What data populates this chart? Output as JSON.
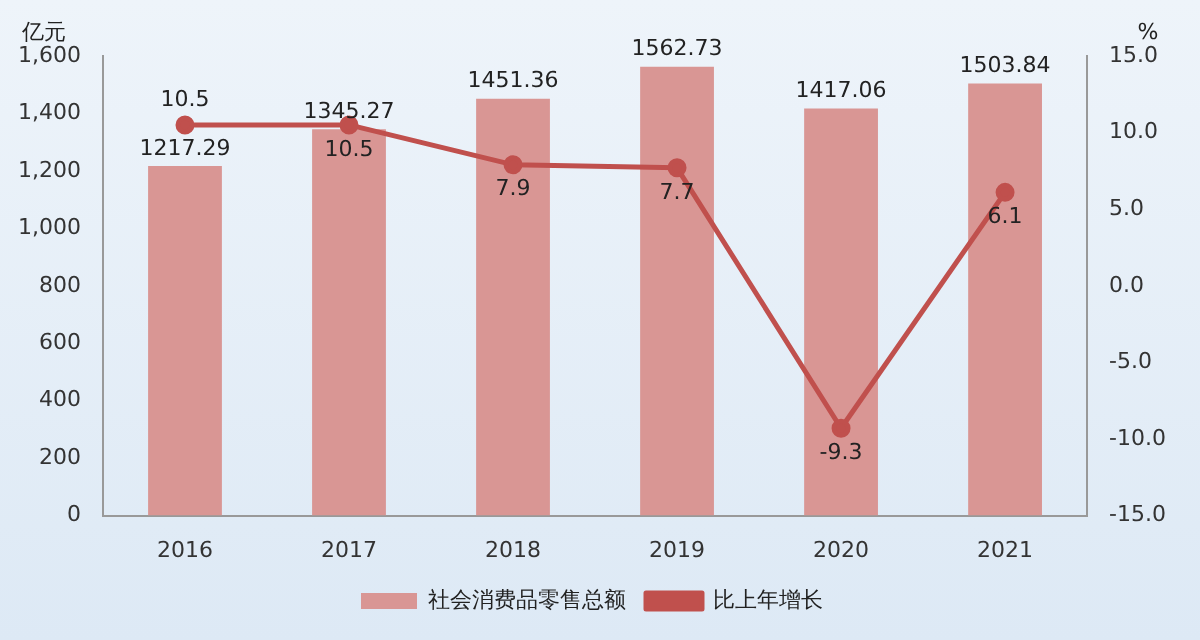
{
  "chart_data": {
    "type": "bar",
    "ylabel": "亿元",
    "y2label": "%",
    "categories": [
      "2016",
      "2017",
      "2018",
      "2019",
      "2020",
      "2021"
    ],
    "series": [
      {
        "name": "社会消费品零售总额",
        "color": "#d99694",
        "values": [
          1217.29,
          1345.27,
          1451.36,
          1562.73,
          1417.06,
          1503.84
        ]
      },
      {
        "name": "比上年增长",
        "type": "line",
        "axis": "y2",
        "color": "#c0504d",
        "values": [
          10.5,
          10.5,
          7.9,
          7.7,
          -9.3,
          6.1
        ]
      }
    ],
    "ylim": [
      0,
      1600
    ],
    "yticks": [
      0,
      200,
      400,
      600,
      800,
      {
        "value": 1000,
        "label": "1,000"
      },
      {
        "value": 1200,
        "label": "1,200"
      },
      {
        "value": 1400,
        "label": "1,400"
      },
      {
        "value": 1600,
        "label": "1,600"
      }
    ],
    "y2lim": [
      -15,
      15
    ],
    "y2ticks": [
      {
        "value": -15,
        "label": "-15.0"
      },
      {
        "value": -10,
        "label": "-10.0"
      },
      {
        "value": -5,
        "label": "-5.0"
      },
      {
        "value": 0,
        "label": "0.0"
      },
      {
        "value": 5,
        "label": "5.0"
      },
      {
        "value": 10,
        "label": "10.0"
      },
      {
        "value": 15,
        "label": "15.0"
      }
    ],
    "grid": false,
    "legend": "bottom",
    "marker": "circle",
    "line_style": "solid",
    "data_labels": true
  }
}
